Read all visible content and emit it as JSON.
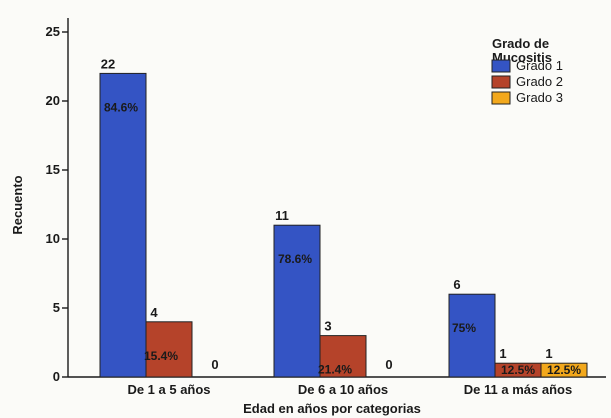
{
  "chart_data": {
    "type": "bar",
    "xlabel": "Edad en años por categorias",
    "ylabel": "Recuento",
    "ylim": [
      0,
      25
    ],
    "yticks": [
      0,
      5,
      10,
      15,
      20,
      25
    ],
    "grid": false,
    "legend_position": "top-right",
    "legend_title": "Grado de Mucositis",
    "legend_title_lines": [
      "Grado de",
      "Mucositis"
    ],
    "categories": [
      "De 1 a 5 años",
      "De 6 a 10 años",
      "De 11 a más años"
    ],
    "series": [
      {
        "name": "Grado 1",
        "color": "#3454c4",
        "values": [
          22,
          11,
          6
        ],
        "value_labels": [
          "22",
          "11",
          "6"
        ],
        "percent_labels": [
          "84.6%",
          "78.6%",
          "75%"
        ]
      },
      {
        "name": "Grado 2",
        "color": "#b5432a",
        "values": [
          4,
          3,
          1
        ],
        "value_labels": [
          "4",
          "3",
          "1"
        ],
        "percent_labels": [
          "15.4%",
          "21.4%",
          "12.5%"
        ]
      },
      {
        "name": "Grado 3",
        "color": "#f2a81c",
        "values": [
          0,
          0,
          1
        ],
        "value_labels": [
          "0",
          "0",
          "1"
        ],
        "percent_labels": [
          "",
          "",
          "12.5%"
        ]
      }
    ]
  }
}
